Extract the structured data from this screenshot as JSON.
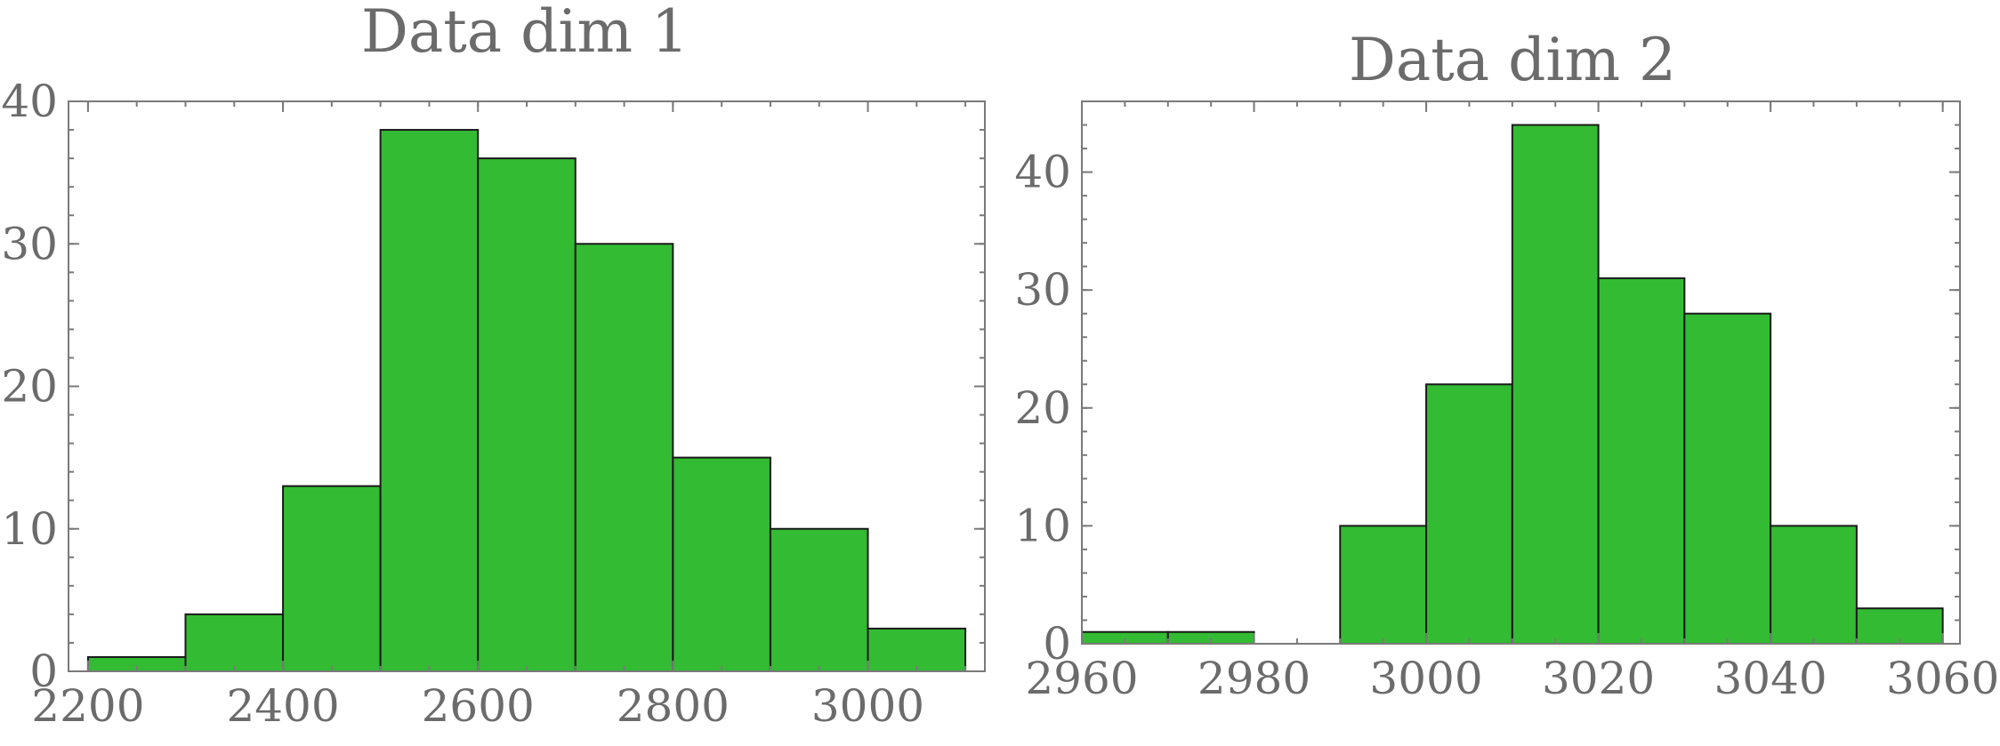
{
  "chart_data": [
    {
      "type": "bar",
      "title": "Data dim 1",
      "xlabel": "",
      "ylabel": "",
      "color": "#33bb33",
      "bin_edges": [
        2200,
        2300,
        2400,
        2500,
        2600,
        2700,
        2800,
        2900,
        3000,
        3100
      ],
      "values": [
        1,
        4,
        13,
        38,
        36,
        30,
        15,
        10,
        3
      ],
      "xlim": [
        2180,
        3120
      ],
      "ylim": [
        0,
        40
      ],
      "xticks": [
        2200,
        2400,
        2600,
        2800,
        3000
      ],
      "yticks": [
        0,
        10,
        20,
        30,
        40
      ],
      "xtick_labels": [
        "2200",
        "2400",
        "2600",
        "2800",
        "3000"
      ],
      "ytick_labels": [
        "0",
        "10",
        "20",
        "30",
        "40"
      ],
      "grid": false
    },
    {
      "type": "bar",
      "title": "Data dim 2",
      "xlabel": "",
      "ylabel": "",
      "color": "#33bb33",
      "bin_edges": [
        2960,
        2970,
        2980,
        2990,
        3000,
        3010,
        3020,
        3030,
        3040,
        3050,
        3060
      ],
      "values": [
        1,
        1,
        0,
        10,
        22,
        44,
        31,
        28,
        10,
        3
      ],
      "xlim": [
        2960,
        3062
      ],
      "ylim": [
        0,
        46
      ],
      "xticks": [
        2960,
        2980,
        3000,
        3020,
        3040,
        3060
      ],
      "yticks": [
        0,
        10,
        20,
        30,
        40
      ],
      "xtick_labels": [
        "2960",
        "2980",
        "3000",
        "3020",
        "3040",
        "3060"
      ],
      "ytick_labels": [
        "0",
        "10",
        "20",
        "30",
        "40"
      ],
      "grid": false
    }
  ]
}
